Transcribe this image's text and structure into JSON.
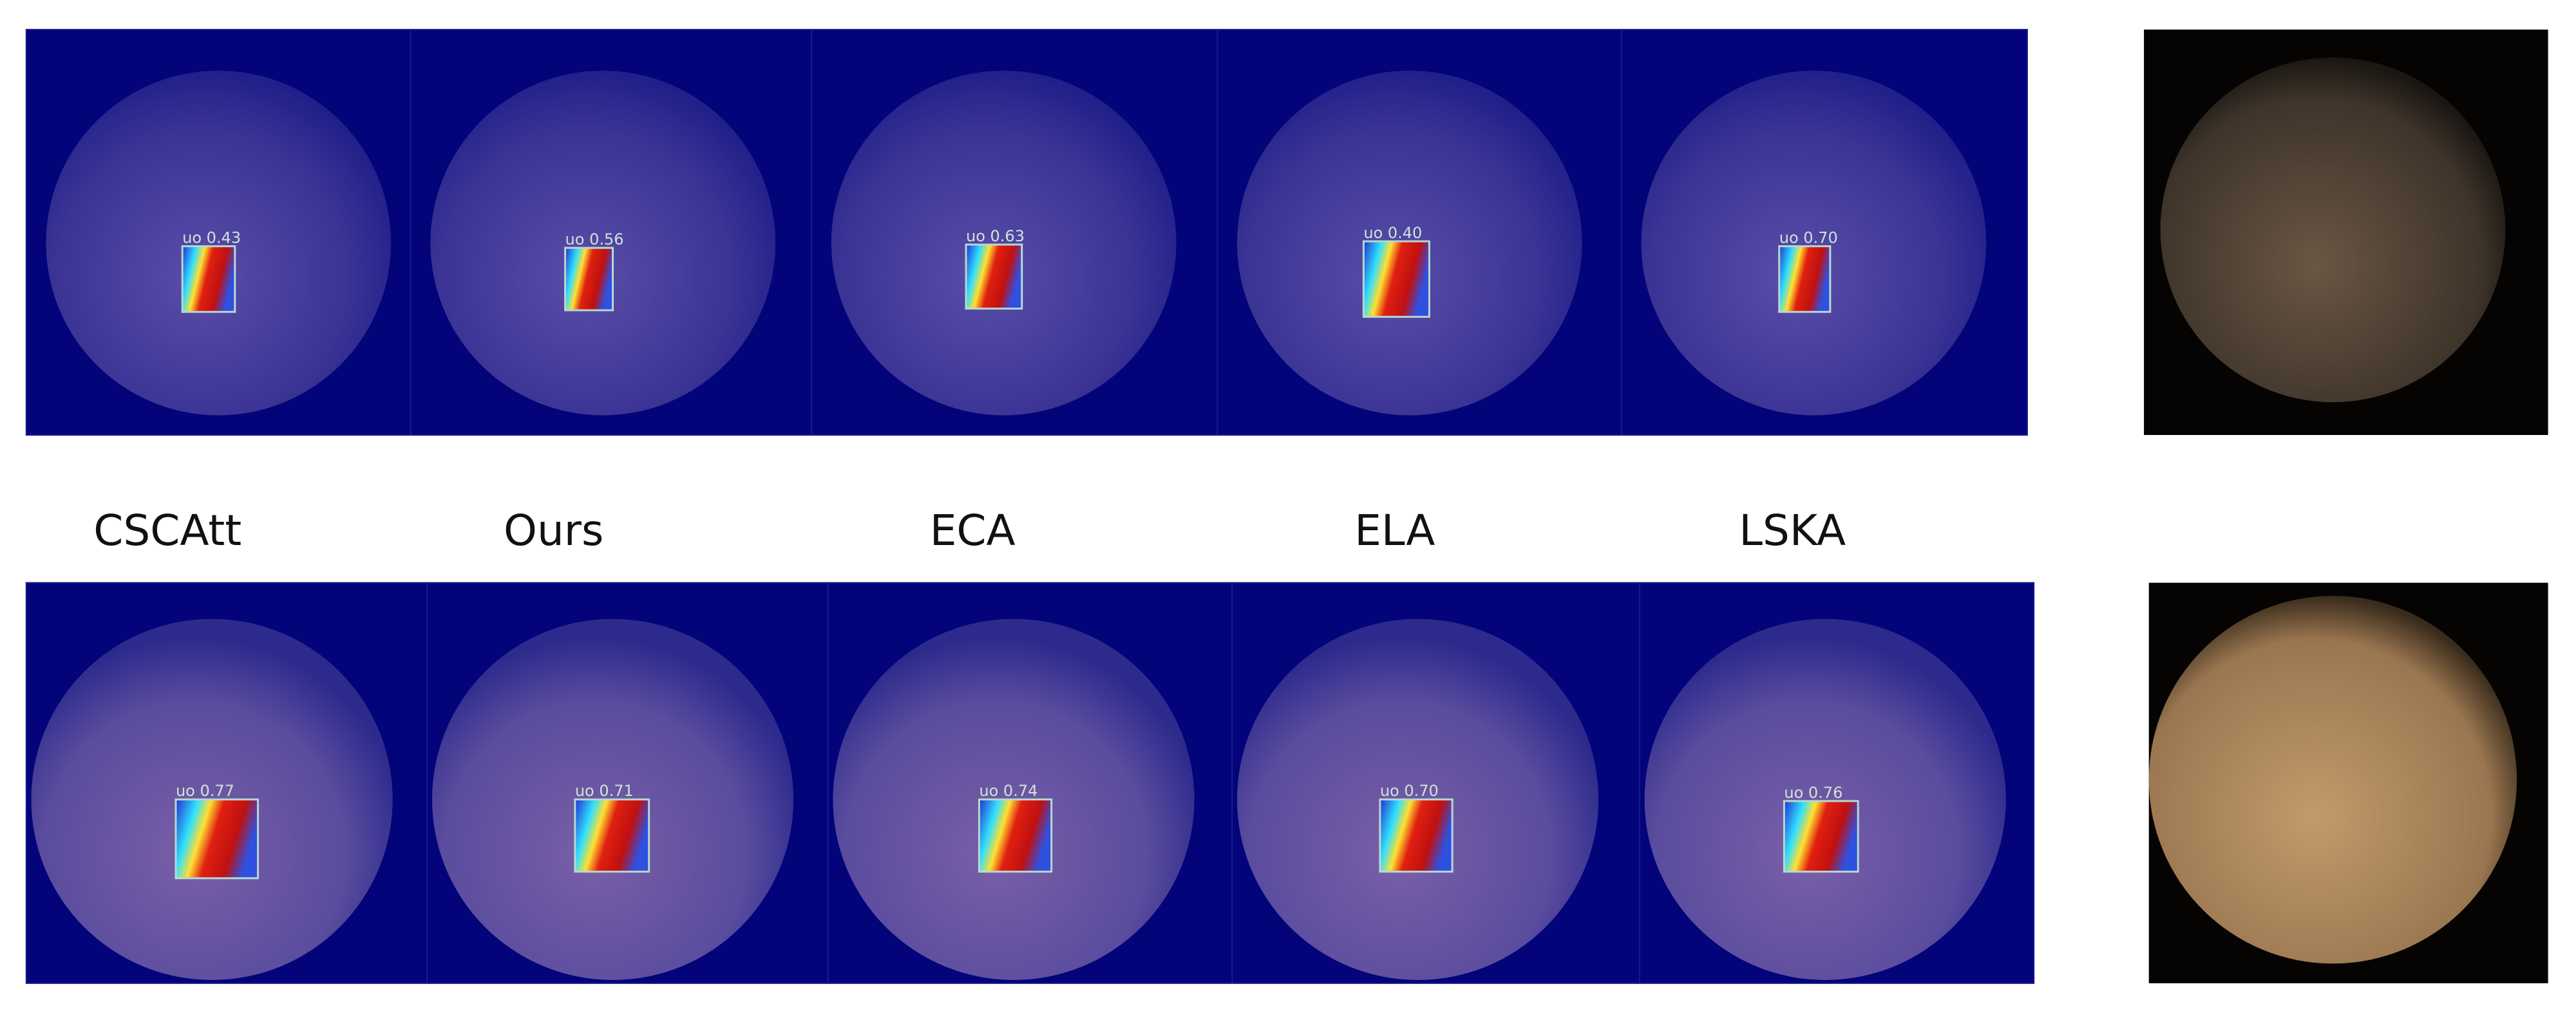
{
  "method_labels": [
    "CSCAtt",
    "Ours",
    "ECA",
    "ELA",
    "LSKA"
  ],
  "rows": [
    {
      "detections": [
        "uo 0.43",
        "uo 0.56",
        "uo 0.63",
        "uo 0.40",
        "uo 0.70"
      ]
    },
    {
      "detections": [
        "uo 0.77",
        "uo 0.71",
        "uo 0.74",
        "uo 0.70",
        "uo 0.76"
      ]
    }
  ]
}
